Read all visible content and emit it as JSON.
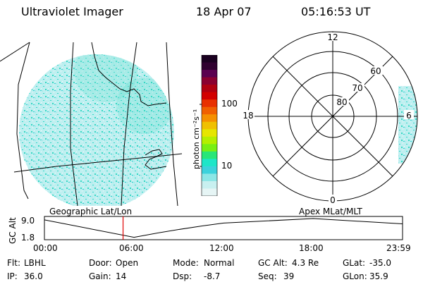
{
  "header": {
    "instrument": "Ultraviolet Imager",
    "date": "18 Apr 07",
    "time": "05:16:53 UT"
  },
  "colorbar": {
    "unit_label": "photon cm⁻²s⁻¹",
    "ticks": [
      "100",
      "10"
    ],
    "colors": [
      "#1a0020",
      "#300030",
      "#5a0050",
      "#8a0030",
      "#b00010",
      "#d20000",
      "#e83000",
      "#f06000",
      "#f59000",
      "#f0c000",
      "#e6e600",
      "#b4ef00",
      "#78ef14",
      "#28e678",
      "#1ee6c8",
      "#3cd2dc",
      "#8ce6e6",
      "#c8f0f0",
      "#e6f5f5"
    ]
  },
  "maps": {
    "left_label": "Geographic Lat/Lon",
    "right_label": "Apex MLat/MLT",
    "polar_mlt": [
      "12",
      "18",
      "6",
      "0"
    ],
    "polar_mlat": [
      "60",
      "70",
      "80"
    ]
  },
  "altitude_plot": {
    "axis_label": "GC Alt",
    "y_ticks": [
      "9.0",
      "1.8"
    ],
    "x_ticks": [
      "00:00",
      "06:00",
      "12:00",
      "18:00",
      "23:59"
    ],
    "chart_data": {
      "type": "line",
      "x": [
        "00:00",
        "06:00",
        "12:00",
        "18:00",
        "23:59"
      ],
      "values": [
        8.5,
        1.9,
        7.3,
        9.0,
        7.0
      ],
      "marker_time": "05:16",
      "ylim": [
        1.8,
        9.0
      ],
      "ylabel": "GC Alt"
    }
  },
  "status": {
    "filter": {
      "label": "Flt:",
      "value": "LBHL"
    },
    "ip": {
      "label": "IP:",
      "value": "36.0"
    },
    "door": {
      "label": "Door:",
      "value": "Open"
    },
    "gain": {
      "label": "Gain:",
      "value": "14"
    },
    "mode": {
      "label": "Mode:",
      "value": "Normal"
    },
    "dsp": {
      "label": "Dsp:",
      "value": "-8.7"
    },
    "gc_alt": {
      "label": "GC Alt:",
      "value": "4.3 Re"
    },
    "seq": {
      "label": "Seq:",
      "value": "39"
    },
    "glat": {
      "label": "GLat:",
      "value": "-35.0"
    },
    "glon": {
      "label": "GLon:",
      "value": "35.9"
    }
  }
}
